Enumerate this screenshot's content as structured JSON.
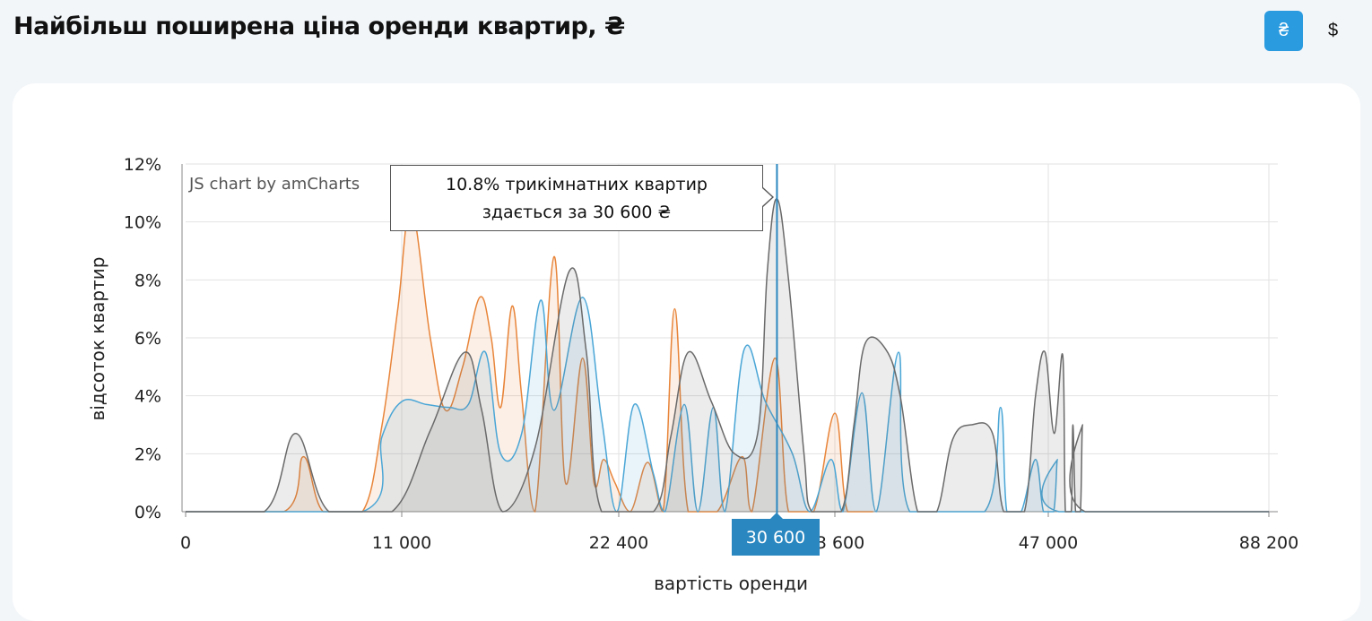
{
  "header": {
    "title": "Найбільш поширена ціна оренди квартир, ₴",
    "currency_uah": "₴",
    "currency_usd": "$"
  },
  "chart_data": {
    "type": "area",
    "xlabel": "вартість оренди",
    "ylabel": "відсоток квартир",
    "y_ticks": [
      "0%",
      "2%",
      "4%",
      "6%",
      "8%",
      "10%",
      "12%"
    ],
    "ylim": [
      0,
      12
    ],
    "x_ticks": [
      "0",
      "11 000",
      "22 400",
      "33 600",
      "47 000",
      "88 200"
    ],
    "credit": "JS chart by amCharts",
    "grid": true,
    "colors": {
      "one_room": "#e8853a",
      "two_room": "#4aa6d6",
      "three_room": "#6a6a6a"
    },
    "series": [
      {
        "color": "#e8853a",
        "points": [
          [
            0,
            0
          ],
          [
            5000,
            0
          ],
          [
            6000,
            1.9
          ],
          [
            7000,
            0
          ],
          [
            9000,
            0
          ],
          [
            10000,
            3
          ],
          [
            10800,
            7
          ],
          [
            11500,
            10.5
          ],
          [
            12500,
            6
          ],
          [
            13300,
            3.5
          ],
          [
            14200,
            5
          ],
          [
            15100,
            7.4
          ],
          [
            15700,
            6
          ],
          [
            16200,
            3.6
          ],
          [
            16800,
            7.1
          ],
          [
            17300,
            4
          ],
          [
            18000,
            0
          ],
          [
            19000,
            8.8
          ],
          [
            19600,
            1
          ],
          [
            20500,
            5.3
          ],
          [
            21100,
            1
          ],
          [
            21600,
            1.8
          ],
          [
            22200,
            1
          ],
          [
            23000,
            0
          ],
          [
            23900,
            1.7
          ],
          [
            24700,
            0
          ],
          [
            25300,
            7
          ],
          [
            26000,
            0
          ],
          [
            27500,
            0
          ],
          [
            28800,
            1.9
          ],
          [
            29300,
            0
          ],
          [
            30500,
            5.3
          ],
          [
            31200,
            0
          ],
          [
            32500,
            0
          ],
          [
            33600,
            3.4
          ],
          [
            34400,
            0
          ],
          [
            36000,
            0
          ]
        ]
      },
      {
        "color": "#4aa6d6",
        "points": [
          [
            0,
            0
          ],
          [
            9000,
            0
          ],
          [
            10000,
            2.6
          ],
          [
            11000,
            3.8
          ],
          [
            12300,
            3.7
          ],
          [
            13500,
            3.6
          ],
          [
            14500,
            3.7
          ],
          [
            15400,
            5.5
          ],
          [
            16200,
            2
          ],
          [
            17300,
            2.7
          ],
          [
            18300,
            7.3
          ],
          [
            19000,
            3.5
          ],
          [
            20500,
            7.4
          ],
          [
            21500,
            3.2
          ],
          [
            22300,
            0
          ],
          [
            23200,
            3.7
          ],
          [
            24200,
            1.3
          ],
          [
            24800,
            0
          ],
          [
            25800,
            3.7
          ],
          [
            26500,
            0
          ],
          [
            27300,
            3.6
          ],
          [
            27900,
            0
          ],
          [
            28900,
            5.6
          ],
          [
            30000,
            3.8
          ],
          [
            31400,
            2
          ],
          [
            32300,
            0
          ],
          [
            33400,
            1.8
          ],
          [
            34100,
            0
          ],
          [
            35300,
            4.1
          ],
          [
            36200,
            0
          ],
          [
            37600,
            5.5
          ],
          [
            38300,
            0
          ],
          [
            43000,
            0
          ],
          [
            44000,
            3.6
          ],
          [
            44400,
            0
          ],
          [
            45300,
            0
          ],
          [
            46200,
            1.8
          ],
          [
            46700,
            0
          ],
          [
            48000,
            0
          ],
          [
            48700,
            1.8
          ],
          [
            49000,
            0
          ],
          [
            88200,
            0
          ]
        ]
      },
      {
        "color": "#6a6a6a",
        "points": [
          [
            0,
            0
          ],
          [
            4000,
            0
          ],
          [
            5600,
            2.7
          ],
          [
            7300,
            0
          ],
          [
            10500,
            0
          ],
          [
            12500,
            2.8
          ],
          [
            14300,
            5.5
          ],
          [
            15200,
            3.5
          ],
          [
            16300,
            0
          ],
          [
            18000,
            2.2
          ],
          [
            19800,
            8.3
          ],
          [
            20700,
            5.5
          ],
          [
            21500,
            0
          ],
          [
            24200,
            0
          ],
          [
            25100,
            2.6
          ],
          [
            26000,
            5.5
          ],
          [
            27200,
            3.8
          ],
          [
            28400,
            2
          ],
          [
            29600,
            2.7
          ],
          [
            30100,
            8.3
          ],
          [
            30600,
            10.8
          ],
          [
            31200,
            8
          ],
          [
            32000,
            2
          ],
          [
            32400,
            0
          ],
          [
            34000,
            0
          ],
          [
            34800,
            3
          ],
          [
            35500,
            5.8
          ],
          [
            36800,
            5.6
          ],
          [
            37700,
            4
          ],
          [
            38800,
            0
          ],
          [
            40000,
            0
          ],
          [
            41000,
            2.5
          ],
          [
            42200,
            3
          ],
          [
            43500,
            2.7
          ],
          [
            44200,
            0
          ],
          [
            45500,
            0
          ],
          [
            46200,
            4
          ],
          [
            46800,
            5.5
          ],
          [
            48100,
            2.7
          ],
          [
            49700,
            5.4
          ],
          [
            50200,
            0
          ],
          [
            51300,
            0
          ],
          [
            51600,
            3
          ],
          [
            52100,
            0
          ],
          [
            53000,
            0
          ],
          [
            53400,
            3
          ],
          [
            53900,
            0
          ],
          [
            88200,
            0
          ]
        ]
      }
    ],
    "cursor": {
      "x": 30600,
      "x_label": "30 600",
      "tooltip_line1": "10.8% трикімнатних квартир",
      "tooltip_line2": "здається за 30 600 ₴"
    }
  }
}
